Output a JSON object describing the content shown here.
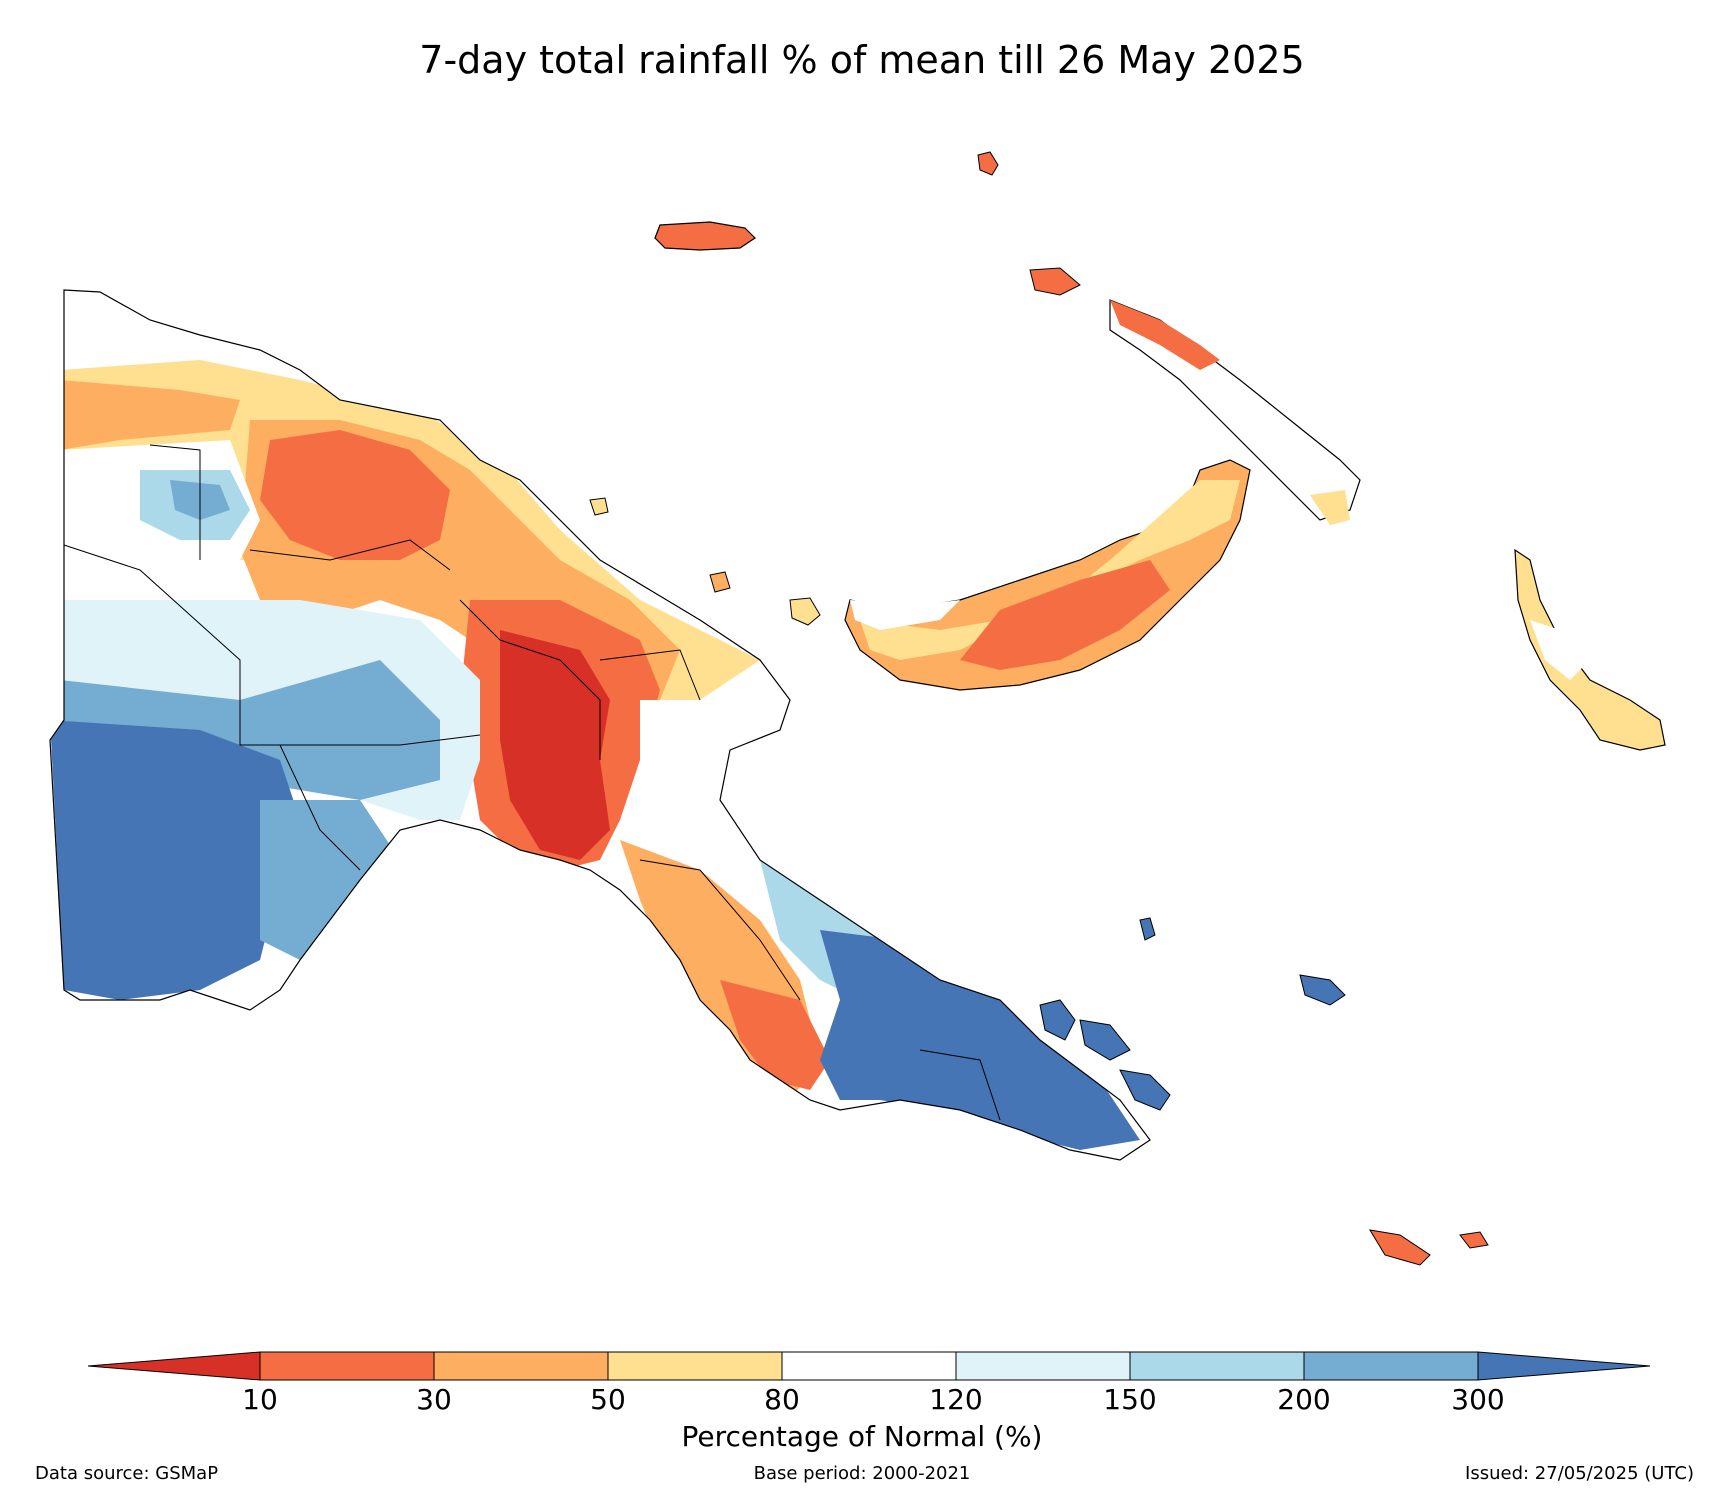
{
  "title": "7-day total rainfall % of mean till 26 May 2025",
  "colorbar": {
    "label": "Percentage of Normal (%)",
    "ticks": [
      "10",
      "30",
      "50",
      "80",
      "120",
      "150",
      "200",
      "300"
    ],
    "colors": {
      "below_10": "#d73027",
      "c10_30": "#f46d43",
      "c30_50": "#fdae61",
      "c50_80": "#fee090",
      "c80_120": "#ffffff",
      "c120_150": "#e0f3f8",
      "c150_200": "#abd9e9",
      "c200_300": "#74add1",
      "above_300": "#4575b4"
    }
  },
  "footer": {
    "source": "Data source: GSMaP",
    "base_period": "Base period: 2000-2021",
    "issued": "Issued: 27/05/2025 (UTC)"
  }
}
